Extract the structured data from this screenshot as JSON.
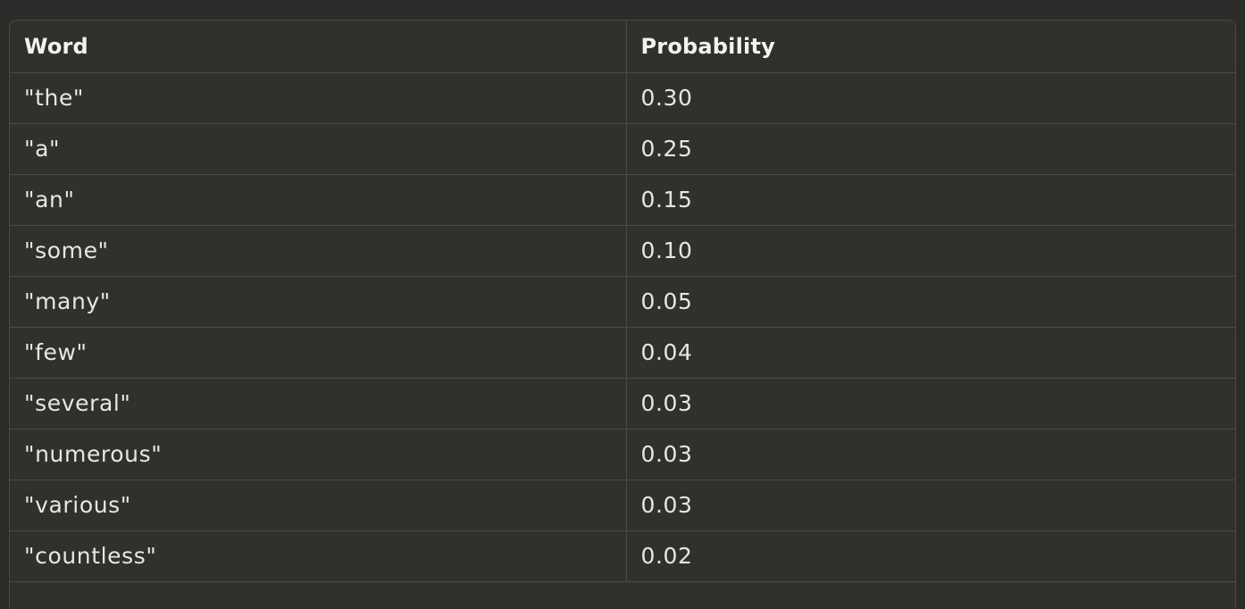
{
  "table": {
    "headers": {
      "word": "Word",
      "probability": "Probability"
    },
    "rows": [
      {
        "word": "\"the\"",
        "probability": "0.30"
      },
      {
        "word": "\"a\"",
        "probability": "0.25"
      },
      {
        "word": "\"an\"",
        "probability": "0.15"
      },
      {
        "word": "\"some\"",
        "probability": "0.10"
      },
      {
        "word": "\"many\"",
        "probability": "0.05"
      },
      {
        "word": "\"few\"",
        "probability": "0.04"
      },
      {
        "word": "\"several\"",
        "probability": "0.03"
      },
      {
        "word": "\"numerous\"",
        "probability": "0.03"
      },
      {
        "word": "\"various\"",
        "probability": "0.03"
      },
      {
        "word": "\"countless\"",
        "probability": "0.02"
      }
    ]
  },
  "colors": {
    "page_background": "#2b2b29",
    "table_background": "#30302d",
    "border": "#4a4a46",
    "text": "#e6e6e3"
  }
}
